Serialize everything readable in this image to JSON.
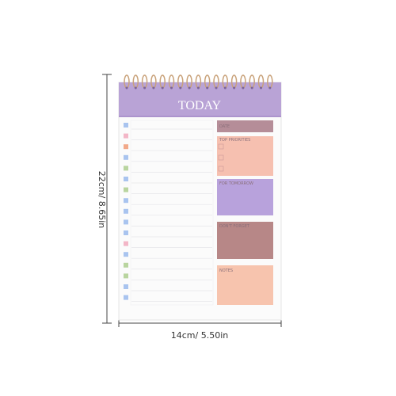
{
  "header": {
    "title": "TODAY"
  },
  "sections": [
    {
      "label": "DATE"
    },
    {
      "label": "TOP PRIORITIES"
    },
    {
      "label": "FOR TOMORROW"
    },
    {
      "label": "DON'T FORGET"
    },
    {
      "label": "NOTES"
    }
  ],
  "dimensions": {
    "height": "22cm/ 8.65in",
    "width": "14cm/ 5.50in"
  }
}
